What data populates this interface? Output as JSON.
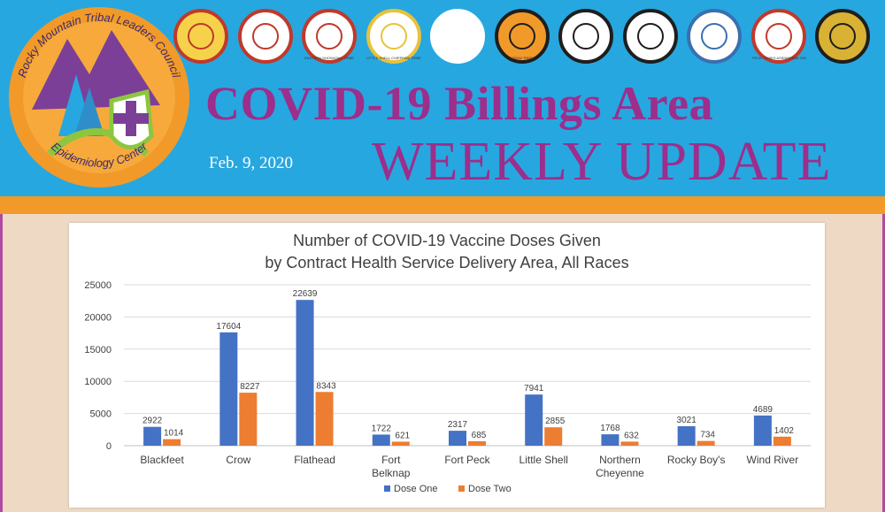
{
  "header": {
    "logo": {
      "top_text": "Rocky Mountain Tribal Leaders Council",
      "bottom_text": "Epidemiology Center"
    },
    "title_line1": "COVID-19 Billings Area",
    "title_line2": "WEEKLY UPDATE",
    "date": "Feb. 9, 2020",
    "seals": [
      {
        "name": "tribal-seal-1",
        "color": "#f6d24a",
        "ring": "#c0392b"
      },
      {
        "name": "tribal-seal-2",
        "color": "#ffffff",
        "ring": "#c0392b"
      },
      {
        "name": "eastern-shoshone-seal",
        "label": "EASTERN SHOSHONE TRIBE",
        "color": "#ffffff",
        "ring": "#c0392b"
      },
      {
        "name": "little-shell-seal",
        "label": "LITTLE SHELL CHIPPEWA TRIBE",
        "color": "#ffffff",
        "ring": "#e8c23a"
      },
      {
        "name": "tribal-seal-5",
        "color": "#ffffff",
        "ring": "#ffffff"
      },
      {
        "name": "crow-tribe-seal",
        "label": "CROW TRIBE",
        "color": "#f19a2a",
        "ring": "#1e1e1e"
      },
      {
        "name": "northern-cheyenne-seal",
        "color": "#ffffff",
        "ring": "#1e1e1e"
      },
      {
        "name": "tribal-seal-8",
        "color": "#ffffff",
        "ring": "#1e1e1e"
      },
      {
        "name": "tribal-seal-9",
        "color": "#ffffff",
        "ring": "#3a6fb0"
      },
      {
        "name": "fort-peck-seal",
        "label": "FT. PECK TRIBES ASSINIBOINE SIOUX",
        "color": "#ffffff",
        "ring": "#c0392b"
      },
      {
        "name": "tribal-seal-11",
        "color": "#d9b233",
        "ring": "#1e1e1e"
      }
    ]
  },
  "chart_data": {
    "type": "bar",
    "title": "Number of COVID-19 Vaccine Doses Given",
    "subtitle": "by Contract Health Service Delivery Area, All Races",
    "categories": [
      [
        "Blackfeet"
      ],
      [
        "Crow"
      ],
      [
        "Flathead"
      ],
      [
        "Fort",
        "Belknap"
      ],
      [
        "Fort Peck"
      ],
      [
        "Little Shell"
      ],
      [
        "Northern",
        "Cheyenne"
      ],
      [
        "Rocky Boy's"
      ],
      [
        "Wind River"
      ]
    ],
    "series": [
      {
        "name": "Dose One",
        "color": "#4472c4",
        "values": [
          2922,
          17604,
          22639,
          1722,
          2317,
          7941,
          1768,
          3021,
          4689
        ]
      },
      {
        "name": "Dose Two",
        "color": "#ed7d31",
        "values": [
          1014,
          8227,
          8343,
          621,
          685,
          2855,
          632,
          734,
          1402
        ]
      }
    ],
    "ylim": [
      0,
      25000
    ],
    "yticks": [
      0,
      5000,
      10000,
      15000,
      20000,
      25000
    ],
    "grid": true,
    "legend_position": "bottom"
  }
}
